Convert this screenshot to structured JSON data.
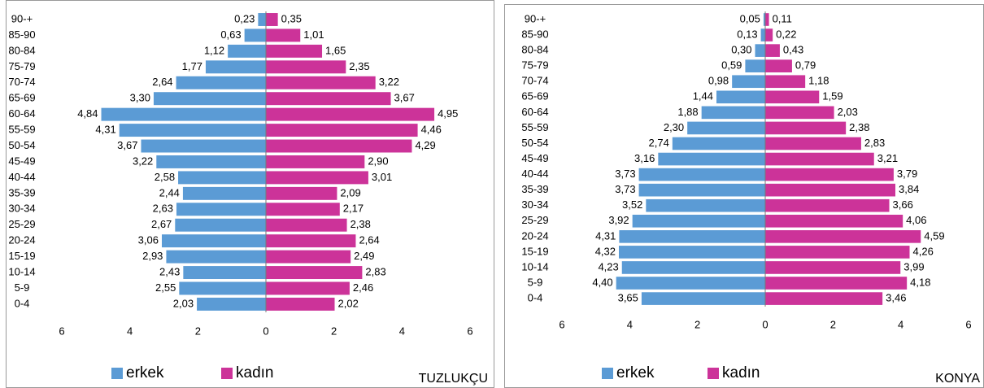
{
  "chart_data": [
    {
      "type": "pyramid",
      "annotation": "TUZLUKÇU",
      "categories": [
        "90-+",
        "85-90",
        "80-84",
        "75-79",
        "70-74",
        "65-69",
        "60-64",
        "55-59",
        "50-54",
        "45-49",
        "40-44",
        "35-39",
        "30-34",
        "25-29",
        "20-24",
        "15-19",
        "10-14",
        "5-9",
        "0-4"
      ],
      "series": [
        {
          "name": "erkek",
          "color": "#5b9bd5",
          "values": [
            0.23,
            0.63,
            1.12,
            1.77,
            2.64,
            3.3,
            4.84,
            4.31,
            3.67,
            3.22,
            2.58,
            2.44,
            2.63,
            2.67,
            3.06,
            2.93,
            2.43,
            2.55,
            2.03
          ],
          "value_labels": [
            "0,23",
            "0,63",
            "1,12",
            "1,77",
            "2,64",
            "3,30",
            "4,84",
            "4,31",
            "3,67",
            "3,22",
            "2,58",
            "2,44",
            "2,63",
            "2,67",
            "3,06",
            "2,93",
            "2,43",
            "2,55",
            "2,03"
          ]
        },
        {
          "name": "kadın",
          "color": "#cc3399",
          "values": [
            0.35,
            1.01,
            1.65,
            2.35,
            3.22,
            3.67,
            4.95,
            4.46,
            4.29,
            2.9,
            3.01,
            2.09,
            2.17,
            2.38,
            2.64,
            2.49,
            2.83,
            2.46,
            2.02
          ],
          "value_labels": [
            "0,35",
            "1,01",
            "1,65",
            "2,35",
            "3,22",
            "3,67",
            "4,95",
            "4,46",
            "4,29",
            "2,90",
            "3,01",
            "2,09",
            "2,17",
            "2,38",
            "2,64",
            "2,49",
            "2,83",
            "2,46",
            "2,02"
          ]
        }
      ],
      "xlim": [
        -6,
        6
      ],
      "xticks": [
        {
          "value": -6,
          "label": "6"
        },
        {
          "value": -4,
          "label": "4"
        },
        {
          "value": -2,
          "label": "2"
        },
        0,
        2,
        4,
        6
      ]
    },
    {
      "type": "pyramid",
      "annotation": "KONYA",
      "categories": [
        "90-+",
        "85-90",
        "80-84",
        "75-79",
        "70-74",
        "65-69",
        "60-64",
        "55-59",
        "50-54",
        "45-49",
        "40-44",
        "35-39",
        "30-34",
        "25-29",
        "20-24",
        "15-19",
        "10-14",
        "5-9",
        "0-4"
      ],
      "series": [
        {
          "name": "erkek",
          "color": "#5b9bd5",
          "values": [
            0.05,
            0.13,
            0.3,
            0.59,
            0.98,
            1.44,
            1.88,
            2.3,
            2.74,
            3.16,
            3.73,
            3.73,
            3.52,
            3.92,
            4.31,
            4.32,
            4.23,
            4.4,
            3.65
          ],
          "value_labels": [
            "0,05",
            "0,13",
            "0,30",
            "0,59",
            "0,98",
            "1,44",
            "1,88",
            "2,30",
            "2,74",
            "3,16",
            "3,73",
            "3,73",
            "3,52",
            "3,92",
            "4,31",
            "4,32",
            "4,23",
            "4,40",
            "3,65"
          ]
        },
        {
          "name": "kadın",
          "color": "#cc3399",
          "values": [
            0.11,
            0.22,
            0.43,
            0.79,
            1.18,
            1.59,
            2.03,
            2.38,
            2.83,
            3.21,
            3.79,
            3.84,
            3.66,
            4.06,
            4.59,
            4.26,
            3.99,
            4.18,
            3.46
          ],
          "value_labels": [
            "0,11",
            "0,22",
            "0,43",
            "0,79",
            "1,18",
            "1,59",
            "2,03",
            "2,38",
            "2,83",
            "3,21",
            "3,79",
            "3,84",
            "3,66",
            "4,06",
            "4,59",
            "4,26",
            "3,99",
            "4,18",
            "3,46"
          ]
        }
      ],
      "xlim": [
        -6,
        6
      ],
      "xticks": [
        {
          "value": -6,
          "label": "6"
        },
        {
          "value": -4,
          "label": "4"
        },
        {
          "value": -2,
          "label": "2"
        },
        0,
        2,
        4,
        6
      ]
    }
  ]
}
